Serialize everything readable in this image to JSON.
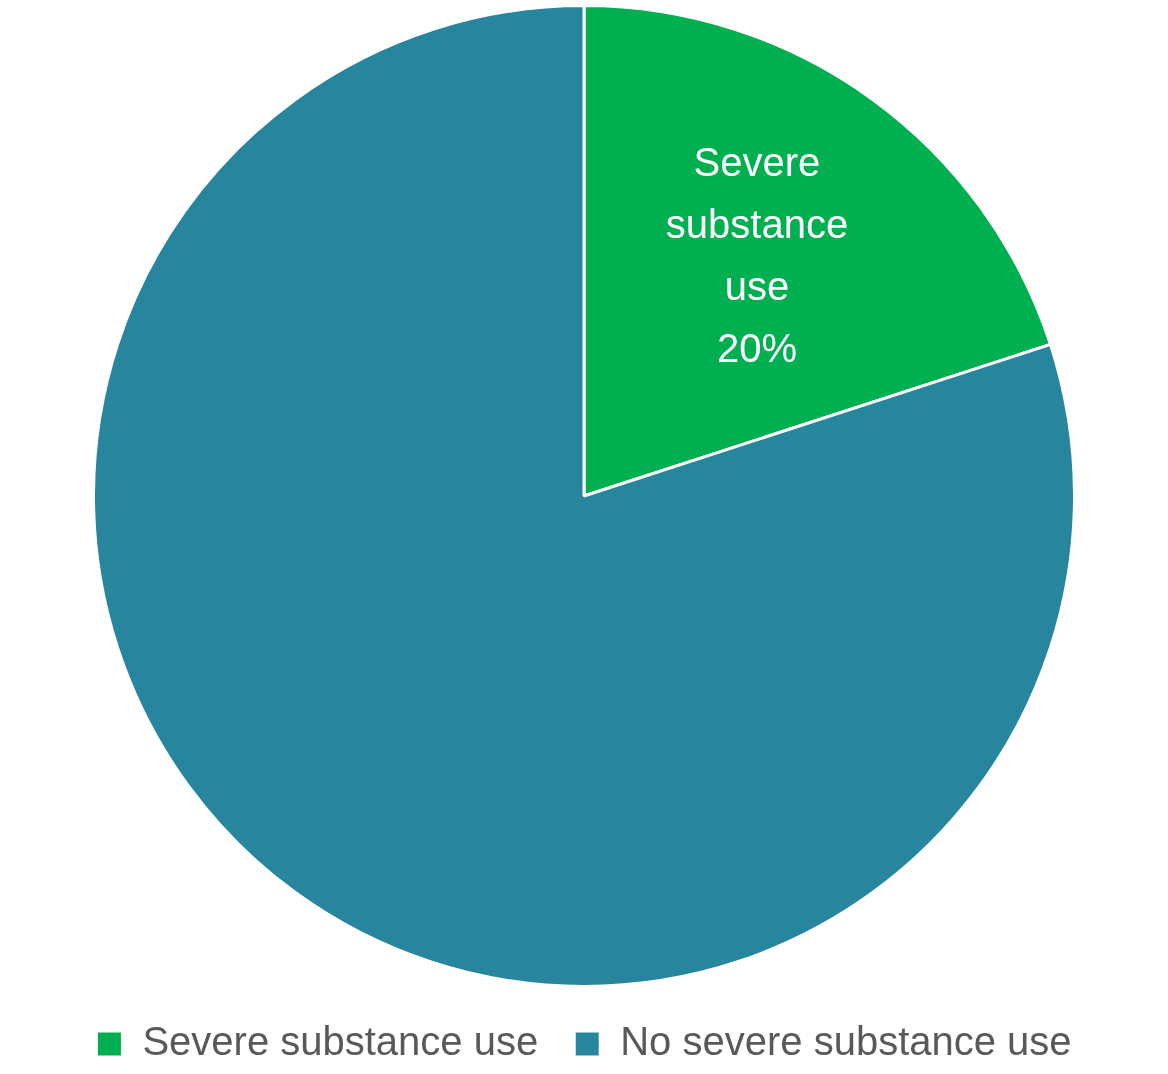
{
  "chart_data": {
    "type": "pie",
    "categories": [
      "Severe substance use",
      "No severe substance use"
    ],
    "values": [
      20,
      80
    ],
    "colors": [
      "#00b050",
      "#27869e"
    ],
    "value_labels": [
      "20%",
      null
    ],
    "legend": "bottom"
  }
}
